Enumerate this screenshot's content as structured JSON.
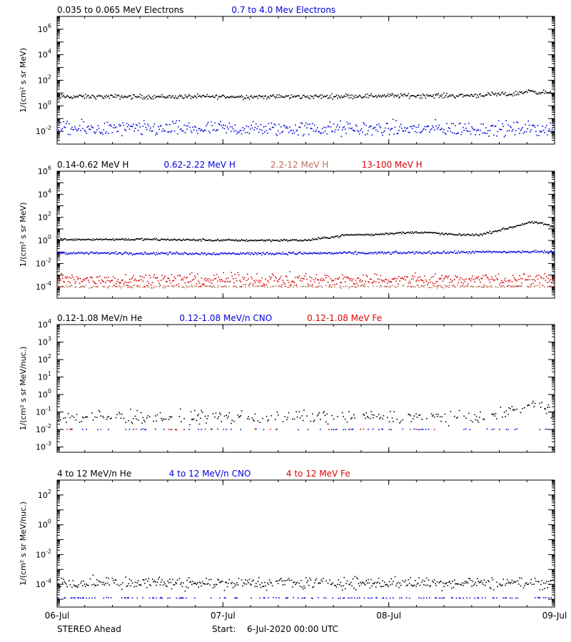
{
  "colors": {
    "black": "#000000",
    "blue": "#0000dd",
    "brown": "#c07058",
    "red": "#dd0000",
    "axis": "#000000"
  },
  "footer": {
    "spacecraft": "STEREO Ahead",
    "start_label": "Start:",
    "start_value": "6-Jul-2020 00:00 UTC"
  },
  "chart_data": [
    {
      "type": "scatter",
      "y_scale": "log",
      "ylim": [
        0.001,
        10000000
      ],
      "xlim_days": [
        0,
        3
      ],
      "x_ticks": [
        "06-Jul",
        "07-Jul",
        "08-Jul",
        "09-Jul"
      ],
      "show_x_tick_labels": false,
      "ylabel": "1/(cm² s sr MeV)",
      "y_tick_labels": [
        {
          "value": 0.01,
          "base": "10",
          "exp": "-2"
        },
        {
          "value": 1,
          "base": "10",
          "exp": "0"
        },
        {
          "value": 100,
          "base": "10",
          "exp": "2"
        },
        {
          "value": 10000,
          "base": "10",
          "exp": "4"
        },
        {
          "value": 1000000,
          "base": "10",
          "exp": "6"
        }
      ],
      "series": [
        {
          "name": "0.035 to 0.065 MeV Electrons",
          "color": "#000000",
          "profile": [
            [
              0,
              5
            ],
            [
              0.3,
              5
            ],
            [
              0.5,
              5
            ],
            [
              1,
              5
            ],
            [
              1.5,
              5
            ],
            [
              2,
              6
            ],
            [
              2.4,
              6
            ],
            [
              2.6,
              7
            ],
            [
              2.75,
              8
            ],
            [
              2.85,
              14
            ],
            [
              2.95,
              10
            ],
            [
              3,
              7
            ]
          ],
          "scatter": 0.15,
          "density": 1.0
        },
        {
          "name": "0.7 to 4.0 Mev Electrons",
          "color": "#0000dd",
          "profile": [
            [
              0,
              0.015
            ],
            [
              1,
              0.015
            ],
            [
              2,
              0.015
            ],
            [
              3,
              0.015
            ]
          ],
          "scatter": 0.5,
          "density": 1.0
        }
      ]
    },
    {
      "type": "scatter",
      "y_scale": "log",
      "ylim": [
        1e-05,
        1000000
      ],
      "xlim_days": [
        0,
        3
      ],
      "x_ticks": [
        "06-Jul",
        "07-Jul",
        "08-Jul",
        "09-Jul"
      ],
      "show_x_tick_labels": false,
      "ylabel": "1/(cm² s sr MeV)",
      "y_tick_labels": [
        {
          "value": 0.0001,
          "base": "10",
          "exp": "-4"
        },
        {
          "value": 0.01,
          "base": "10",
          "exp": "-2"
        },
        {
          "value": 1,
          "base": "10",
          "exp": "0"
        },
        {
          "value": 100,
          "base": "10",
          "exp": "2"
        },
        {
          "value": 10000,
          "base": "10",
          "exp": "4"
        },
        {
          "value": 1000000,
          "base": "10",
          "exp": "6"
        }
      ],
      "series": [
        {
          "name": "0.14-0.62 MeV H",
          "color": "#000000",
          "profile": [
            [
              0,
              1.2
            ],
            [
              0.5,
              1.2
            ],
            [
              1,
              1
            ],
            [
              1.5,
              1
            ],
            [
              1.6,
              1.5
            ],
            [
              1.75,
              3
            ],
            [
              1.9,
              3
            ],
            [
              2,
              4
            ],
            [
              2.2,
              5
            ],
            [
              2.4,
              3
            ],
            [
              2.55,
              3
            ],
            [
              2.7,
              10
            ],
            [
              2.85,
              35
            ],
            [
              2.92,
              30
            ],
            [
              3,
              12
            ]
          ],
          "scatter": 0.08,
          "density": 1.0
        },
        {
          "name": "0.62-2.22 MeV H",
          "color": "#0000dd",
          "profile": [
            [
              0,
              0.08
            ],
            [
              1,
              0.07
            ],
            [
              2,
              0.08
            ],
            [
              2.8,
              0.1
            ],
            [
              3,
              0.1
            ]
          ],
          "scatter": 0.1,
          "density": 1.0
        },
        {
          "name": "2.2-12 MeV H",
          "color": "#c07058",
          "profile": [
            [
              0,
              0.0001
            ],
            [
              3,
              0.0001
            ]
          ],
          "scatter": 0.1,
          "density": 0.6
        },
        {
          "name": "13-100 MeV H",
          "color": "#dd0000",
          "profile": [
            [
              0,
              0.0004
            ],
            [
              3,
              0.0004
            ]
          ],
          "scatter": 0.45,
          "density": 1.0
        }
      ]
    },
    {
      "type": "scatter",
      "y_scale": "log",
      "ylim": [
        0.0005,
        10000
      ],
      "xlim_days": [
        0,
        3
      ],
      "x_ticks": [
        "06-Jul",
        "07-Jul",
        "08-Jul",
        "09-Jul"
      ],
      "show_x_tick_labels": false,
      "ylabel": "1/(cm² s sr MeV/nuc.)",
      "y_tick_labels": [
        {
          "value": 0.001,
          "base": "10",
          "exp": "-3"
        },
        {
          "value": 0.01,
          "base": "10",
          "exp": "-2"
        },
        {
          "value": 0.1,
          "base": "10",
          "exp": "-1"
        },
        {
          "value": 1,
          "base": "10",
          "exp": "0"
        },
        {
          "value": 10,
          "base": "10",
          "exp": "1"
        },
        {
          "value": 100,
          "base": "10",
          "exp": "2"
        },
        {
          "value": 1000,
          "base": "10",
          "exp": "3"
        },
        {
          "value": 10000,
          "base": "10",
          "exp": "4"
        }
      ],
      "series": [
        {
          "name": "0.12-1.08 MeV/n He",
          "color": "#000000",
          "profile": [
            [
              0,
              0.05
            ],
            [
              2.6,
              0.05
            ],
            [
              2.7,
              0.08
            ],
            [
              2.8,
              0.2
            ],
            [
              2.9,
              0.25
            ],
            [
              3,
              0.1
            ]
          ],
          "scatter": 0.3,
          "density": 0.55
        },
        {
          "name": "0.12-1.08 MeV/n CNO",
          "color": "#0000dd",
          "profile": [
            [
              0,
              0.01
            ],
            [
              3,
              0.01
            ]
          ],
          "scatter": 0.02,
          "density": 0.12
        },
        {
          "name": "0.12-1.08 MeV Fe",
          "color": "#dd0000",
          "profile": [
            [
              0,
              0.01
            ],
            [
              3,
              0.01
            ]
          ],
          "scatter": 0.02,
          "density": 0.05
        }
      ]
    },
    {
      "type": "scatter",
      "y_scale": "log",
      "ylim": [
        3e-06,
        1000
      ],
      "xlim_days": [
        0,
        3
      ],
      "x_ticks": [
        "06-Jul",
        "07-Jul",
        "08-Jul",
        "09-Jul"
      ],
      "show_x_tick_labels": true,
      "ylabel": "1/(cm² s sr MeV/nuc.)",
      "y_tick_labels": [
        {
          "value": 0.0001,
          "base": "10",
          "exp": "-4"
        },
        {
          "value": 0.01,
          "base": "10",
          "exp": "-2"
        },
        {
          "value": 1,
          "base": "10",
          "exp": "0"
        },
        {
          "value": 100,
          "base": "10",
          "exp": "2"
        }
      ],
      "series": [
        {
          "name": "4 to 12 MeV/n He",
          "color": "#000000",
          "profile": [
            [
              0,
              0.00012
            ],
            [
              3,
              0.00012
            ]
          ],
          "scatter": 0.35,
          "density": 0.9
        },
        {
          "name": "4 to 12 MeV/n CNO",
          "color": "#0000dd",
          "profile": [
            [
              0,
              1.2e-05
            ],
            [
              3,
              1.2e-05
            ]
          ],
          "scatter": 0.02,
          "density": 0.25
        },
        {
          "name": "4 to 12 MeV Fe",
          "color": "#dd0000",
          "profile": [
            [
              0,
              1.2e-05
            ],
            [
              3,
              1.2e-05
            ]
          ],
          "scatter": 0.02,
          "density": 0.0
        }
      ]
    }
  ]
}
